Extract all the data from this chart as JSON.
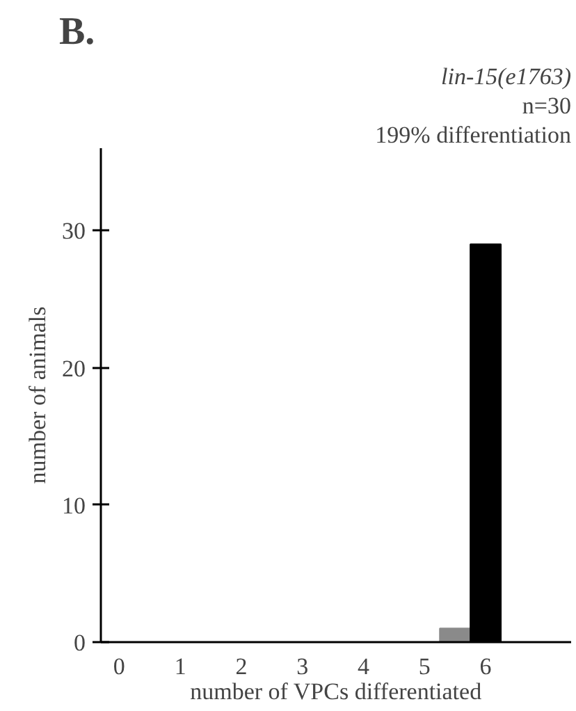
{
  "chart_data": {
    "type": "bar",
    "title": "B.",
    "annotations": [
      "lin-15(e1763)",
      "n=30",
      "199% differentiation"
    ],
    "x": [
      5.5,
      6
    ],
    "values": [
      1,
      29
    ],
    "colors": [
      "#8a8a8a",
      "#000000"
    ],
    "xlim": [
      -0.3,
      7.4
    ],
    "xticks": [
      0,
      1,
      2,
      3,
      4,
      5,
      6
    ],
    "ylim": [
      0,
      36
    ],
    "yticks": [
      0,
      10,
      20,
      30
    ],
    "xlabel": "number of VPCs differentiated",
    "ylabel": "number of animals",
    "grid": false
  }
}
